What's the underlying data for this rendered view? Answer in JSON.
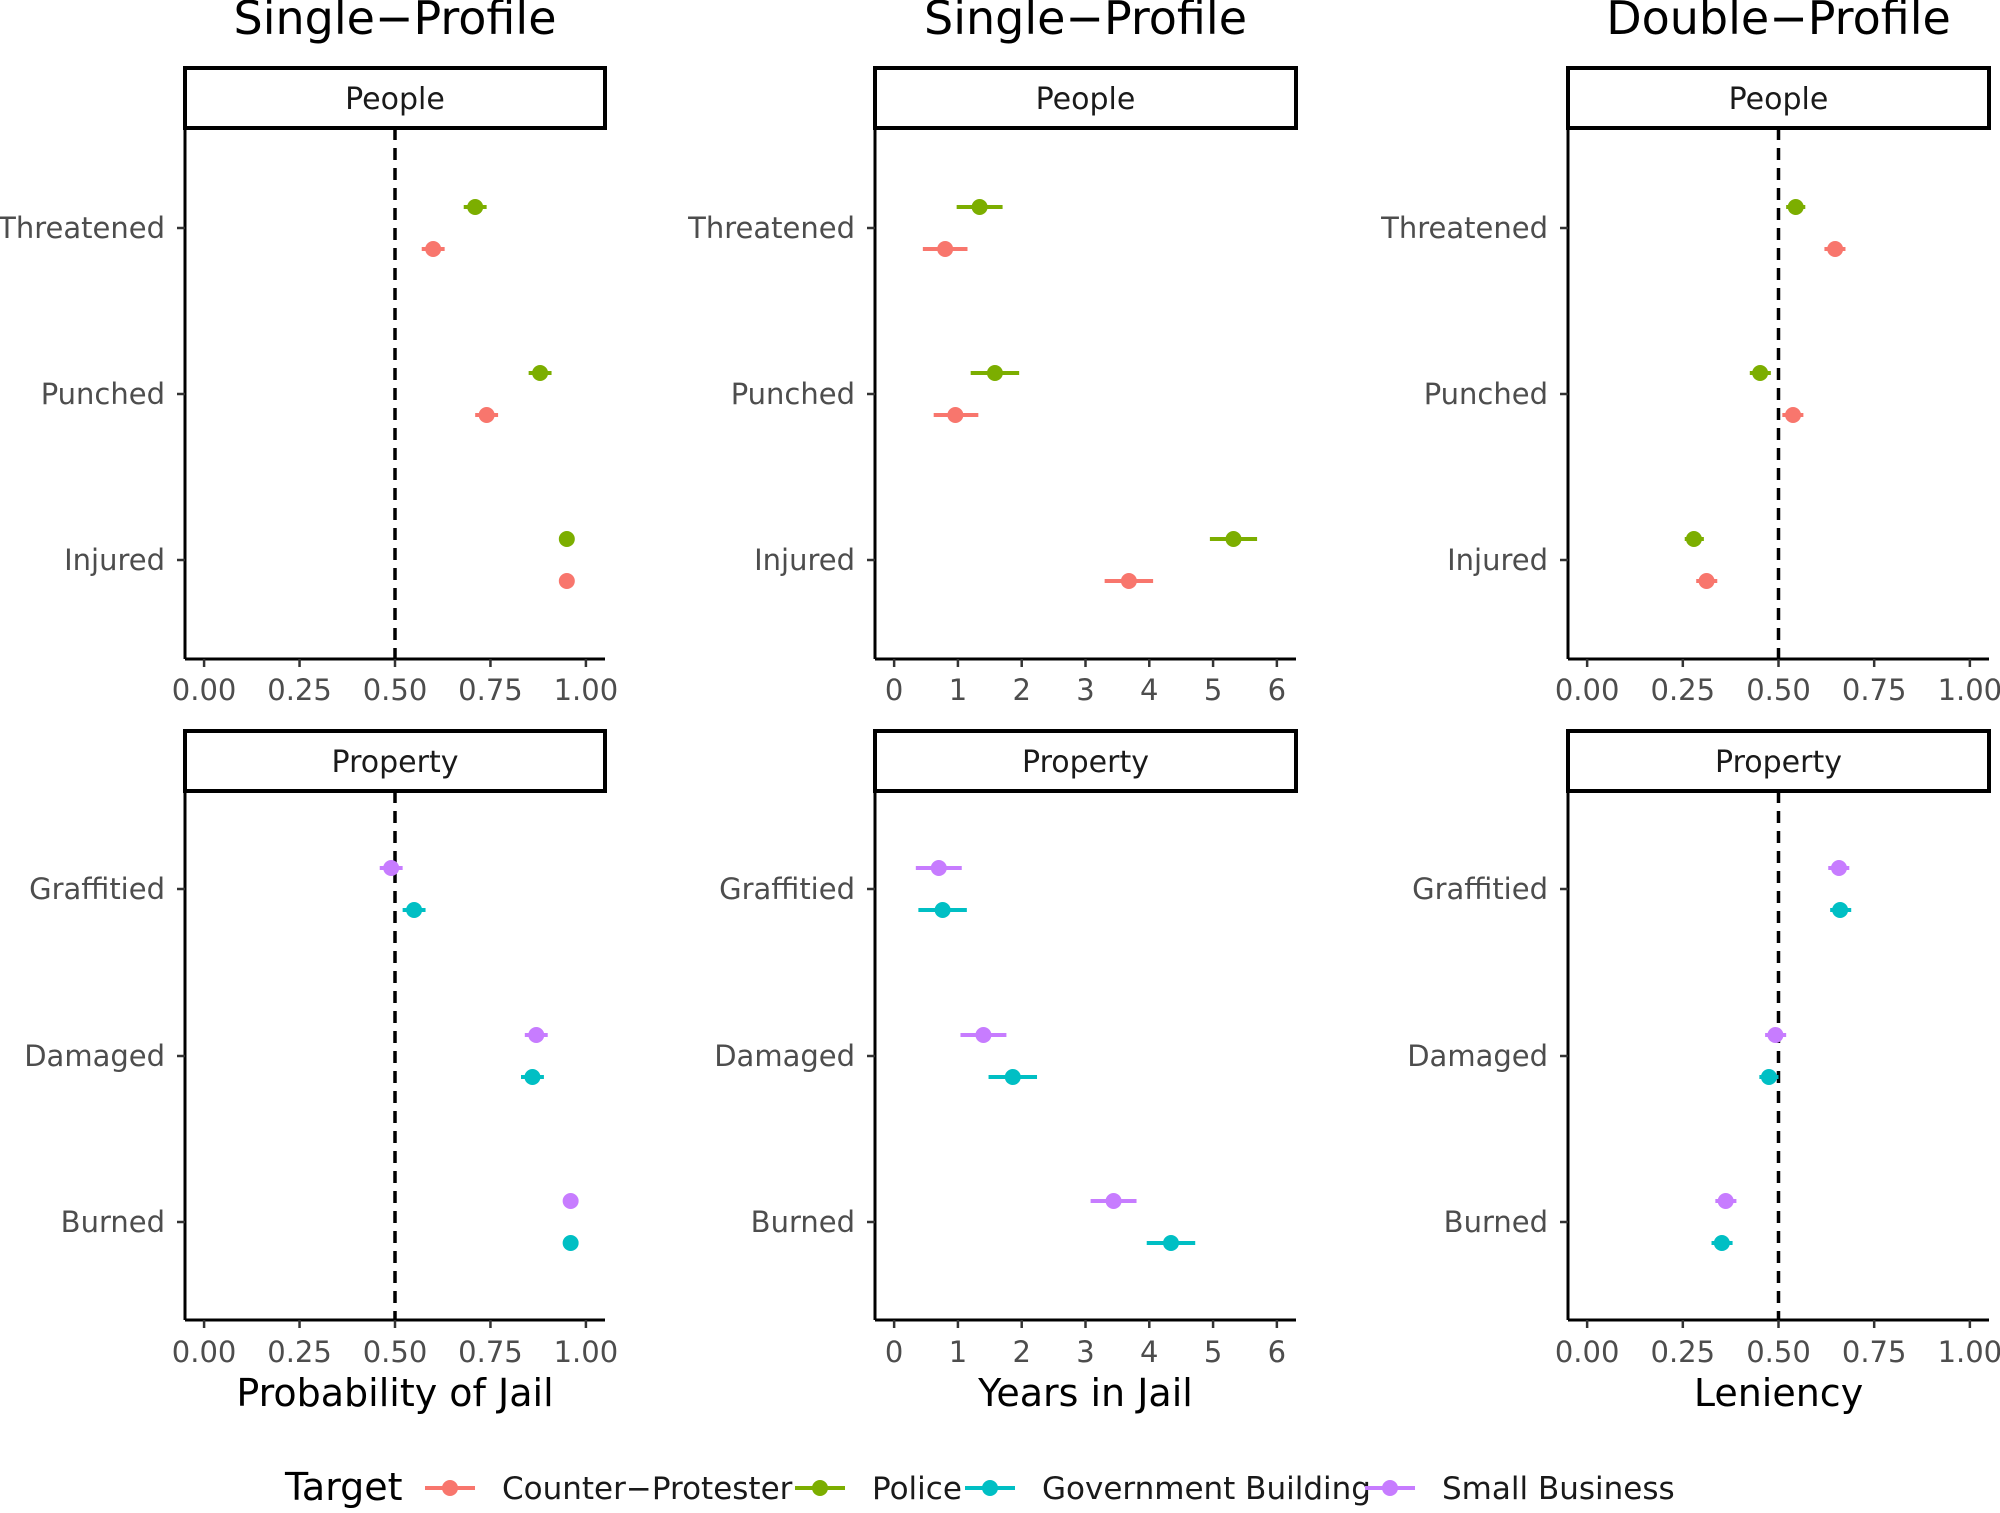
{
  "chart_data": [
    {
      "type": "scatter",
      "title": "Single−Profile",
      "xlabel": "Probability of Jail",
      "xlim": [
        -0.05,
        1.05
      ],
      "xticks": [
        "0.00",
        "0.25",
        "0.50",
        "0.75",
        "1.00"
      ],
      "xtick_values": [
        0,
        0.25,
        0.5,
        0.75,
        1
      ],
      "refline": 0.5,
      "facets": [
        {
          "strip": "People",
          "categories": [
            "Threatened",
            "Punched",
            "Injured"
          ],
          "series": [
            {
              "name": "Police",
              "values": [
                0.71,
                0.88,
                0.95
              ],
              "lo": [
                0.68,
                0.85,
                0.93
              ],
              "hi": [
                0.74,
                0.91,
                0.97
              ]
            },
            {
              "name": "Counter−Protester",
              "values": [
                0.6,
                0.74,
                0.95
              ],
              "lo": [
                0.57,
                0.71,
                0.93
              ],
              "hi": [
                0.63,
                0.77,
                0.97
              ]
            }
          ]
        },
        {
          "strip": "Property",
          "categories": [
            "Graffitied",
            "Damaged",
            "Burned"
          ],
          "series": [
            {
              "name": "Small Business",
              "values": [
                0.49,
                0.87,
                0.96
              ],
              "lo": [
                0.46,
                0.84,
                0.94
              ],
              "hi": [
                0.52,
                0.9,
                0.98
              ]
            },
            {
              "name": "Government Building",
              "values": [
                0.55,
                0.86,
                0.96
              ],
              "lo": [
                0.52,
                0.83,
                0.94
              ],
              "hi": [
                0.58,
                0.89,
                0.98
              ]
            }
          ]
        }
      ]
    },
    {
      "type": "scatter",
      "title": "Single−Profile",
      "xlabel": "Years in Jail",
      "xlim": [
        -0.3,
        6.3
      ],
      "xticks": [
        "0",
        "1",
        "2",
        "3",
        "4",
        "5",
        "6"
      ],
      "xtick_values": [
        0,
        1,
        2,
        3,
        4,
        5,
        6
      ],
      "refline": null,
      "facets": [
        {
          "strip": "People",
          "categories": [
            "Threatened",
            "Punched",
            "Injured"
          ],
          "series": [
            {
              "name": "Police",
              "values": [
                1.34,
                1.58,
                5.32
              ],
              "lo": [
                0.98,
                1.2,
                4.95
              ],
              "hi": [
                1.7,
                1.96,
                5.69
              ]
            },
            {
              "name": "Counter−Protester",
              "values": [
                0.8,
                0.96,
                3.68
              ],
              "lo": [
                0.45,
                0.62,
                3.3
              ],
              "hi": [
                1.15,
                1.32,
                4.06
              ]
            }
          ]
        },
        {
          "strip": "Property",
          "categories": [
            "Graffitied",
            "Damaged",
            "Burned"
          ],
          "series": [
            {
              "name": "Small Business",
              "values": [
                0.7,
                1.4,
                3.44
              ],
              "lo": [
                0.34,
                1.04,
                3.08
              ],
              "hi": [
                1.06,
                1.76,
                3.8
              ]
            },
            {
              "name": "Government Building",
              "values": [
                0.76,
                1.86,
                4.34
              ],
              "lo": [
                0.38,
                1.48,
                3.96
              ],
              "hi": [
                1.14,
                2.24,
                4.72
              ]
            }
          ]
        }
      ]
    },
    {
      "type": "scatter",
      "title": "Double−Profile",
      "xlabel": "Leniency",
      "xlim": [
        -0.05,
        1.05
      ],
      "xticks": [
        "0.00",
        "0.25",
        "0.50",
        "0.75",
        "1.00"
      ],
      "xtick_values": [
        0,
        0.25,
        0.5,
        0.75,
        1
      ],
      "refline": 0.5,
      "facets": [
        {
          "strip": "People",
          "categories": [
            "Threatened",
            "Punched",
            "Injured"
          ],
          "series": [
            {
              "name": "Police",
              "values": [
                0.545,
                0.452,
                0.279
              ],
              "lo": [
                0.52,
                0.425,
                0.255
              ],
              "hi": [
                0.57,
                0.48,
                0.305
              ]
            },
            {
              "name": "Counter−Protester",
              "values": [
                0.648,
                0.538,
                0.312
              ],
              "lo": [
                0.62,
                0.51,
                0.285
              ],
              "hi": [
                0.675,
                0.565,
                0.34
              ]
            }
          ]
        },
        {
          "strip": "Property",
          "categories": [
            "Graffitied",
            "Damaged",
            "Burned"
          ],
          "series": [
            {
              "name": "Small Business",
              "values": [
                0.658,
                0.492,
                0.362
              ],
              "lo": [
                0.63,
                0.465,
                0.335
              ],
              "hi": [
                0.685,
                0.52,
                0.39
              ]
            },
            {
              "name": "Government Building",
              "values": [
                0.661,
                0.475,
                0.352
              ],
              "lo": [
                0.635,
                0.45,
                0.325
              ],
              "hi": [
                0.69,
                0.5,
                0.38
              ]
            }
          ]
        }
      ]
    }
  ],
  "legend": {
    "title": "Target",
    "entries": [
      {
        "name": "Counter−Protester",
        "color": "#F8766D"
      },
      {
        "name": "Police",
        "color": "#7CAE00"
      },
      {
        "name": "Government Building",
        "color": "#00BFC4"
      },
      {
        "name": "Small Business",
        "color": "#C77CFF"
      }
    ]
  }
}
